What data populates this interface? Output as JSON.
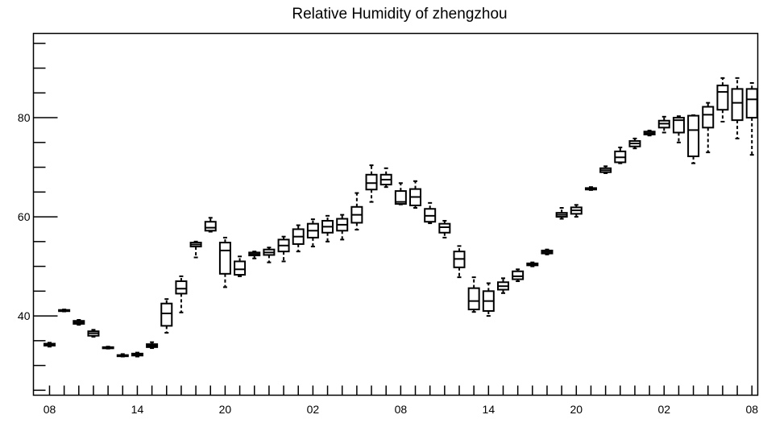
{
  "chart_data": {
    "type": "boxplot",
    "title": "Relative Humidity of zhengzhou",
    "xlabel": "",
    "ylabel": "",
    "x_tick_labels": [
      "08",
      "14",
      "20",
      "02",
      "08",
      "14",
      "20",
      "02",
      "08"
    ],
    "x_tick_positions": [
      0,
      6,
      12,
      18,
      24,
      30,
      36,
      42,
      48
    ],
    "xlim": [
      -1.1,
      48.4
    ],
    "y_tick_labels": [
      "40",
      "60",
      "80"
    ],
    "y_tick_values": [
      40,
      60,
      80
    ],
    "ylim": [
      24,
      97
    ],
    "grid": false,
    "boxes": [
      {
        "x": 0,
        "low": 33.8,
        "q1": 34.0,
        "median": 34.2,
        "q3": 34.4,
        "high": 34.6
      },
      {
        "x": 1,
        "low": 40.9,
        "q1": 41.0,
        "median": 41.1,
        "q3": 41.2,
        "high": 41.3
      },
      {
        "x": 2,
        "low": 38.2,
        "q1": 38.4,
        "median": 38.7,
        "q3": 39.0,
        "high": 39.2
      },
      {
        "x": 3,
        "low": 35.8,
        "q1": 36.0,
        "median": 36.5,
        "q3": 36.9,
        "high": 37.2
      },
      {
        "x": 4,
        "low": 33.4,
        "q1": 33.5,
        "median": 33.6,
        "q3": 33.7,
        "high": 33.8
      },
      {
        "x": 5,
        "low": 31.8,
        "q1": 31.9,
        "median": 32.0,
        "q3": 32.1,
        "high": 32.3
      },
      {
        "x": 6,
        "low": 31.8,
        "q1": 32.0,
        "median": 32.2,
        "q3": 32.4,
        "high": 32.6
      },
      {
        "x": 7,
        "low": 33.5,
        "q1": 33.7,
        "median": 34.0,
        "q3": 34.3,
        "high": 34.7
      },
      {
        "x": 8,
        "low": 36.6,
        "q1": 38.0,
        "median": 40.5,
        "q3": 42.5,
        "high": 43.4
      },
      {
        "x": 9,
        "low": 40.7,
        "q1": 44.5,
        "median": 45.5,
        "q3": 47.0,
        "high": 48.0
      },
      {
        "x": 10,
        "low": 51.8,
        "q1": 54.0,
        "median": 54.4,
        "q3": 54.8,
        "high": 55.0
      },
      {
        "x": 11,
        "low": 57.0,
        "q1": 57.2,
        "median": 57.8,
        "q3": 59.0,
        "high": 59.8
      },
      {
        "x": 12,
        "low": 45.8,
        "q1": 48.5,
        "median": 53.2,
        "q3": 54.8,
        "high": 55.8
      },
      {
        "x": 13,
        "low": 48.0,
        "q1": 48.3,
        "median": 49.4,
        "q3": 51.0,
        "high": 52.0
      },
      {
        "x": 14,
        "low": 51.6,
        "q1": 52.2,
        "median": 52.5,
        "q3": 52.8,
        "high": 53.0
      },
      {
        "x": 15,
        "low": 50.8,
        "q1": 52.3,
        "median": 52.8,
        "q3": 53.4,
        "high": 53.8
      },
      {
        "x": 16,
        "low": 51.0,
        "q1": 53.0,
        "median": 54.2,
        "q3": 55.4,
        "high": 56.0
      },
      {
        "x": 17,
        "low": 53.0,
        "q1": 54.5,
        "median": 56.0,
        "q3": 57.5,
        "high": 58.3
      },
      {
        "x": 18,
        "low": 54.0,
        "q1": 55.8,
        "median": 57.2,
        "q3": 58.6,
        "high": 59.5
      },
      {
        "x": 19,
        "low": 55.0,
        "q1": 56.8,
        "median": 58.0,
        "q3": 59.2,
        "high": 60.2
      },
      {
        "x": 20,
        "low": 55.4,
        "q1": 57.2,
        "median": 58.4,
        "q3": 59.6,
        "high": 60.4
      },
      {
        "x": 21,
        "low": 57.4,
        "q1": 58.8,
        "median": 60.4,
        "q3": 62.0,
        "high": 64.8
      },
      {
        "x": 22,
        "low": 63.0,
        "q1": 65.5,
        "median": 66.8,
        "q3": 68.5,
        "high": 70.4
      },
      {
        "x": 23,
        "low": 66.0,
        "q1": 66.5,
        "median": 67.5,
        "q3": 68.5,
        "high": 69.8
      },
      {
        "x": 24,
        "low": 62.5,
        "q1": 62.6,
        "median": 63.0,
        "q3": 65.2,
        "high": 66.8
      },
      {
        "x": 25,
        "low": 61.8,
        "q1": 62.3,
        "median": 64.0,
        "q3": 65.6,
        "high": 67.2
      },
      {
        "x": 26,
        "low": 58.7,
        "q1": 59.0,
        "median": 60.2,
        "q3": 61.6,
        "high": 62.8
      },
      {
        "x": 27,
        "low": 55.8,
        "q1": 56.8,
        "median": 57.9,
        "q3": 58.6,
        "high": 59.2
      },
      {
        "x": 28,
        "low": 47.8,
        "q1": 49.8,
        "median": 51.5,
        "q3": 53.0,
        "high": 54.1
      },
      {
        "x": 29,
        "low": 40.8,
        "q1": 41.3,
        "median": 43.0,
        "q3": 45.6,
        "high": 47.8
      },
      {
        "x": 30,
        "low": 40.0,
        "q1": 41.0,
        "median": 43.0,
        "q3": 45.0,
        "high": 46.6
      },
      {
        "x": 31,
        "low": 44.6,
        "q1": 45.3,
        "median": 46.0,
        "q3": 46.8,
        "high": 47.6
      },
      {
        "x": 32,
        "low": 47.0,
        "q1": 47.4,
        "median": 48.0,
        "q3": 49.0,
        "high": 49.4
      },
      {
        "x": 33,
        "low": 50.0,
        "q1": 50.2,
        "median": 50.4,
        "q3": 50.6,
        "high": 50.8
      },
      {
        "x": 34,
        "low": 52.4,
        "q1": 52.6,
        "median": 52.9,
        "q3": 53.2,
        "high": 53.4
      },
      {
        "x": 35,
        "low": 59.6,
        "q1": 60.0,
        "median": 60.4,
        "q3": 60.8,
        "high": 61.8
      },
      {
        "x": 36,
        "low": 60.0,
        "q1": 60.6,
        "median": 61.3,
        "q3": 61.9,
        "high": 62.4
      },
      {
        "x": 37,
        "low": 65.4,
        "q1": 65.5,
        "median": 65.6,
        "q3": 65.8,
        "high": 66.0
      },
      {
        "x": 38,
        "low": 68.8,
        "q1": 69.0,
        "median": 69.4,
        "q3": 69.8,
        "high": 70.2
      },
      {
        "x": 39,
        "low": 70.8,
        "q1": 71.0,
        "median": 72.0,
        "q3": 73.2,
        "high": 74.0
      },
      {
        "x": 40,
        "low": 73.8,
        "q1": 74.2,
        "median": 74.8,
        "q3": 75.3,
        "high": 75.8
      },
      {
        "x": 41,
        "low": 76.4,
        "q1": 76.6,
        "median": 76.9,
        "q3": 77.2,
        "high": 77.4
      },
      {
        "x": 42,
        "low": 77.0,
        "q1": 78.0,
        "median": 78.8,
        "q3": 79.4,
        "high": 80.2
      },
      {
        "x": 43,
        "low": 75.0,
        "q1": 77.0,
        "median": 79.5,
        "q3": 80.0,
        "high": 80.3
      },
      {
        "x": 44,
        "low": 70.8,
        "q1": 72.2,
        "median": 77.5,
        "q3": 80.4,
        "high": 80.5
      },
      {
        "x": 45,
        "low": 73.0,
        "q1": 78.0,
        "median": 80.6,
        "q3": 82.2,
        "high": 83.0
      },
      {
        "x": 46,
        "low": 79.2,
        "q1": 81.6,
        "median": 85.2,
        "q3": 86.5,
        "high": 88.0
      },
      {
        "x": 47,
        "low": 75.8,
        "q1": 79.5,
        "median": 83.0,
        "q3": 85.8,
        "high": 88.0
      },
      {
        "x": 48,
        "low": 72.5,
        "q1": 80.0,
        "median": 83.7,
        "q3": 85.8,
        "high": 87.0
      }
    ]
  }
}
